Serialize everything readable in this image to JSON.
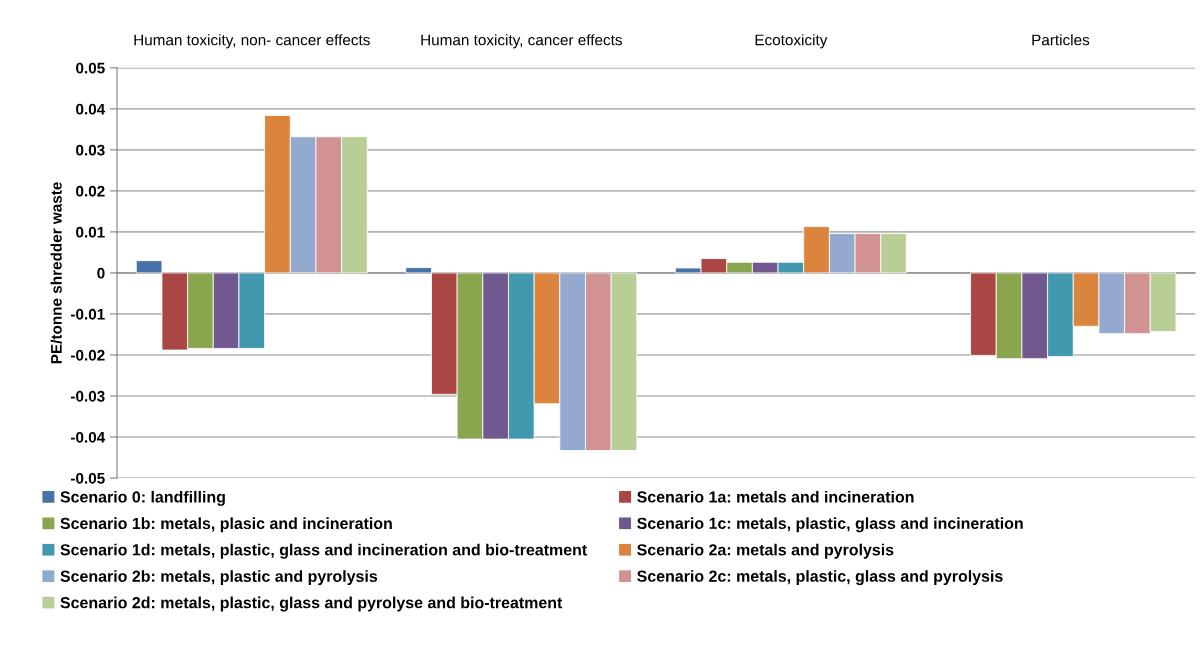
{
  "chart_data": {
    "type": "bar",
    "categories": [
      "Human toxicity, non- cancer effects",
      "Human toxicity, cancer effects",
      "Ecotoxicity",
      "Particles"
    ],
    "ylabel": "PE/tonne shredder waste",
    "ylim": [
      -0.05,
      0.05
    ],
    "yticks": [
      -0.05,
      -0.04,
      -0.03,
      -0.02,
      -0.01,
      0,
      0.01,
      0.02,
      0.03,
      0.04,
      0.05
    ],
    "grid": "y",
    "legend": "bottom",
    "series": [
      {
        "name": "Scenario 0: landfilling",
        "color": "#4572a7",
        "values": [
          0.003,
          0.0013,
          0.0012,
          null
        ]
      },
      {
        "name": "Scenario 1a: metals and incineration",
        "color": "#aa4643",
        "values": [
          -0.0188,
          -0.0296,
          0.0035,
          -0.0201
        ]
      },
      {
        "name": "Scenario 1b: metals, plasic and incineration",
        "color": "#89a54e",
        "values": [
          -0.0184,
          -0.0405,
          0.0026,
          -0.0209
        ]
      },
      {
        "name": "Scenario 1c: metals, plastic, glass and incineration",
        "color": "#71588f",
        "values": [
          -0.0184,
          -0.0405,
          0.0026,
          -0.0209
        ]
      },
      {
        "name": "Scenario 1d: metals, plastic, glass and incineration and bio-treatment",
        "color": "#4198af",
        "values": [
          -0.0184,
          -0.0405,
          0.0026,
          -0.0204
        ]
      },
      {
        "name": "Scenario 2a: metals and pyrolysis",
        "color": "#db843d",
        "values": [
          0.0384,
          -0.0319,
          0.0113,
          -0.013
        ]
      },
      {
        "name": "Scenario 2b: metals, plastic and pyrolysis",
        "color": "#93a9cf",
        "values": [
          0.0332,
          -0.0433,
          0.0096,
          -0.0148
        ]
      },
      {
        "name": "Scenario 2c: metals, plastic, glass and pyrolysis",
        "color": "#d19392",
        "values": [
          0.0332,
          -0.0433,
          0.0096,
          -0.0148
        ]
      },
      {
        "name": "Scenario 2d: metals, plastic, glass and pyrolyse and bio-treatment",
        "color": "#b9cd96",
        "values": [
          0.0332,
          -0.0433,
          0.0096,
          -0.0143
        ]
      }
    ]
  }
}
